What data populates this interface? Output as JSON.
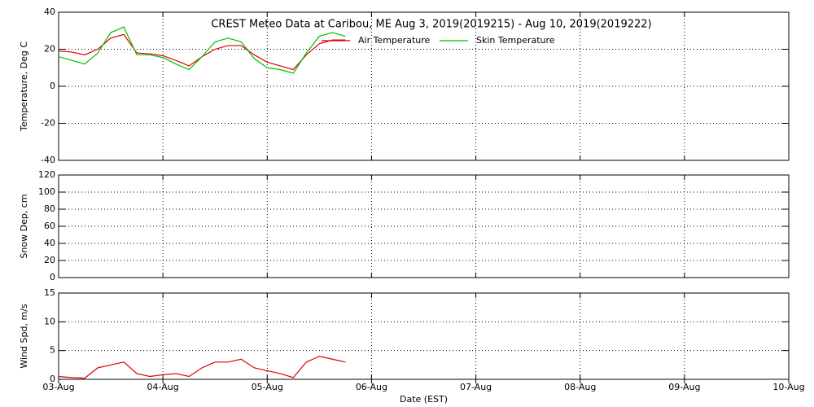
{
  "chart_data": [
    {
      "type": "line",
      "title": "CREST Meteo Data at Caribou, ME   Aug  3, 2019(2019215) - Aug 10, 2019(2019222)",
      "y_label": "Temperature, Deg C",
      "x": [
        0,
        0.125,
        0.25,
        0.375,
        0.5,
        0.625,
        0.75,
        0.875,
        1.0,
        1.125,
        1.25,
        1.375,
        1.5,
        1.625,
        1.75,
        1.875,
        2.0,
        2.125,
        2.25,
        2.375,
        2.5,
        2.625,
        2.75
      ],
      "series": [
        {
          "name": "Air Temperature",
          "color": "#dd0000",
          "values": [
            19,
            18.5,
            17,
            20,
            26,
            28,
            18,
            17.5,
            16.5,
            14,
            11,
            16,
            20,
            22,
            22,
            17,
            13,
            11,
            9,
            17,
            23,
            25,
            25
          ]
        },
        {
          "name": "Skin Temperature",
          "color": "#00c000",
          "values": [
            16,
            14,
            12,
            18,
            29,
            32,
            17,
            17,
            15.5,
            12,
            9,
            16,
            24,
            26,
            24,
            15,
            10,
            9,
            7,
            18,
            27,
            29,
            27
          ]
        }
      ],
      "xlim": [
        0,
        7
      ],
      "xticks": [
        0,
        1,
        2,
        3,
        4,
        5,
        6,
        7
      ],
      "ylim": [
        -40,
        40
      ],
      "yticks": [
        -40,
        -20,
        0,
        20,
        40
      ],
      "grid": true
    },
    {
      "type": "line",
      "y_label": "Snow Dep, cm",
      "x": [],
      "series": [],
      "xlim": [
        0,
        7
      ],
      "xticks": [
        0,
        1,
        2,
        3,
        4,
        5,
        6,
        7
      ],
      "ylim": [
        0,
        120
      ],
      "yticks": [
        0,
        20,
        40,
        60,
        80,
        100,
        120
      ],
      "grid": true
    },
    {
      "type": "line",
      "y_label": "Wind Spd, m/s",
      "x_label": "Date (EST)",
      "x": [
        0,
        0.125,
        0.25,
        0.375,
        0.5,
        0.625,
        0.75,
        0.875,
        1.0,
        1.125,
        1.25,
        1.375,
        1.5,
        1.625,
        1.75,
        1.875,
        2.0,
        2.125,
        2.25,
        2.375,
        2.5,
        2.625,
        2.75
      ],
      "series": [
        {
          "color": "#dd0000",
          "values": [
            0.5,
            0.3,
            0.2,
            2,
            2.5,
            3,
            1,
            0.5,
            0.8,
            1,
            0.5,
            2,
            3,
            3,
            3.5,
            2,
            1.5,
            1,
            0.3,
            3,
            4,
            3.5,
            3
          ]
        }
      ],
      "xlim": [
        0,
        7
      ],
      "xticks": [
        {
          "value": 0,
          "label": "03-Aug"
        },
        {
          "value": 1,
          "label": "04-Aug"
        },
        {
          "value": 2,
          "label": "05-Aug"
        },
        {
          "value": 3,
          "label": "06-Aug"
        },
        {
          "value": 4,
          "label": "07-Aug"
        },
        {
          "value": 5,
          "label": "08-Aug"
        },
        {
          "value": 6,
          "label": "09-Aug"
        },
        {
          "value": 7,
          "label": "10-Aug"
        }
      ],
      "ylim": [
        0,
        15
      ],
      "yticks": [
        0,
        5,
        10,
        15
      ],
      "grid": true
    }
  ]
}
